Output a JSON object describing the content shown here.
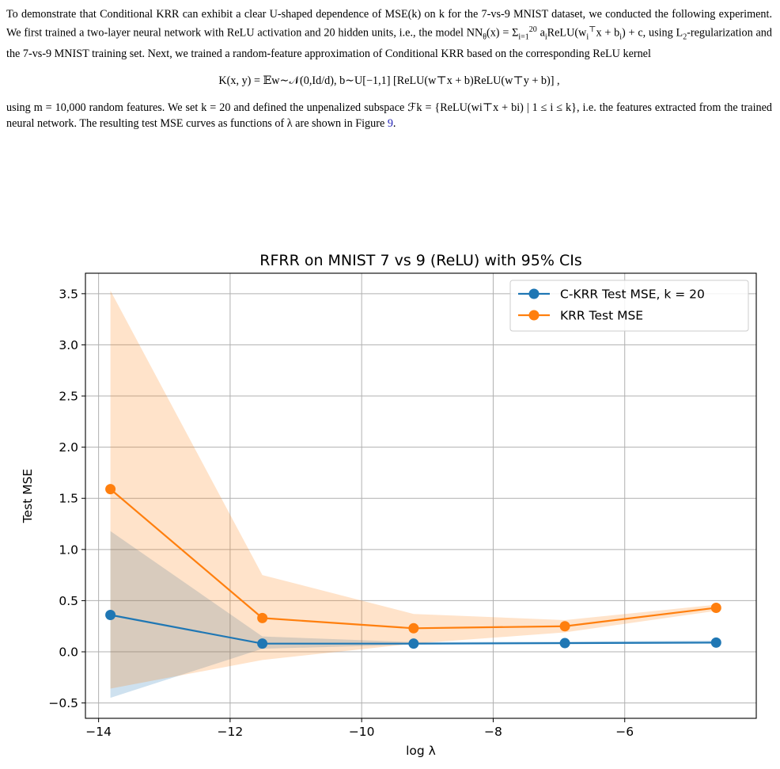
{
  "paragraph": {
    "p1_a": "To demonstrate that Conditional KRR can exhibit a clear U-shaped dependence of MSE(k) on k for the 7-vs-9 MNIST dataset, we conducted the following experiment. We first trained a two-layer neural network with ReLU activation and 20 hidden units, i.e., the model NN",
    "p1_b": "(x) = Σ",
    "p1_c": " a",
    "p1_d": "ReLU(w",
    "p1_e": "x + b",
    "p1_f": ") + c, using L",
    "p1_g": "-regularization and the 7-vs-9 MNIST training set. Next, we trained a random-feature approximation of Conditional KRR based on the corresponding ReLU kernel",
    "equation": "K(x, y) = 𝔼w∼𝒩(0,Id/d), b∼U[−1,1] [ReLU(w⊤x + b)ReLU(w⊤y + b)] ,",
    "p2_a": "using m = 10,000 random features. We set k = 20 and defined the unpenalized subspace ℱk = {ReLU(wi⊤x + bi) | 1 ≤ i ≤ k}, i.e. the features extracted from the trained neural network. The resulting test MSE curves as functions of λ are shown in Figure ",
    "figure_ref": "9",
    "p2_end": "."
  },
  "chart_data": {
    "type": "line",
    "title": "RFRR on MNIST 7 vs 9 (ReLU) with 95% CIs",
    "xlabel": "log λ",
    "ylabel": "Test MSE",
    "xlim": [
      -14.2,
      -4.0
    ],
    "ylim": [
      -0.65,
      3.7
    ],
    "xticks": [
      -14,
      -12,
      -10,
      -8,
      -6
    ],
    "yticks": [
      -0.5,
      0.0,
      0.5,
      1.0,
      1.5,
      2.0,
      2.5,
      3.0,
      3.5
    ],
    "grid": true,
    "legend_position": "top-right",
    "x": [
      -13.82,
      -11.51,
      -9.21,
      -6.91,
      -4.61
    ],
    "series": [
      {
        "name": "C-KRR Test MSE, k = 20",
        "color": "#1f77b4",
        "values": [
          0.36,
          0.08,
          0.08,
          0.085,
          0.09
        ],
        "ci_low": [
          -0.45,
          0.03,
          0.07,
          0.075,
          0.08
        ],
        "ci_high": [
          1.18,
          0.15,
          0.095,
          0.1,
          0.11
        ]
      },
      {
        "name": "KRR Test MSE",
        "color": "#ff7f0e",
        "values": [
          1.59,
          0.33,
          0.23,
          0.25,
          0.43
        ],
        "ci_low": [
          -0.36,
          -0.08,
          0.08,
          0.19,
          0.4
        ],
        "ci_high": [
          3.53,
          0.75,
          0.37,
          0.31,
          0.46
        ]
      }
    ]
  }
}
